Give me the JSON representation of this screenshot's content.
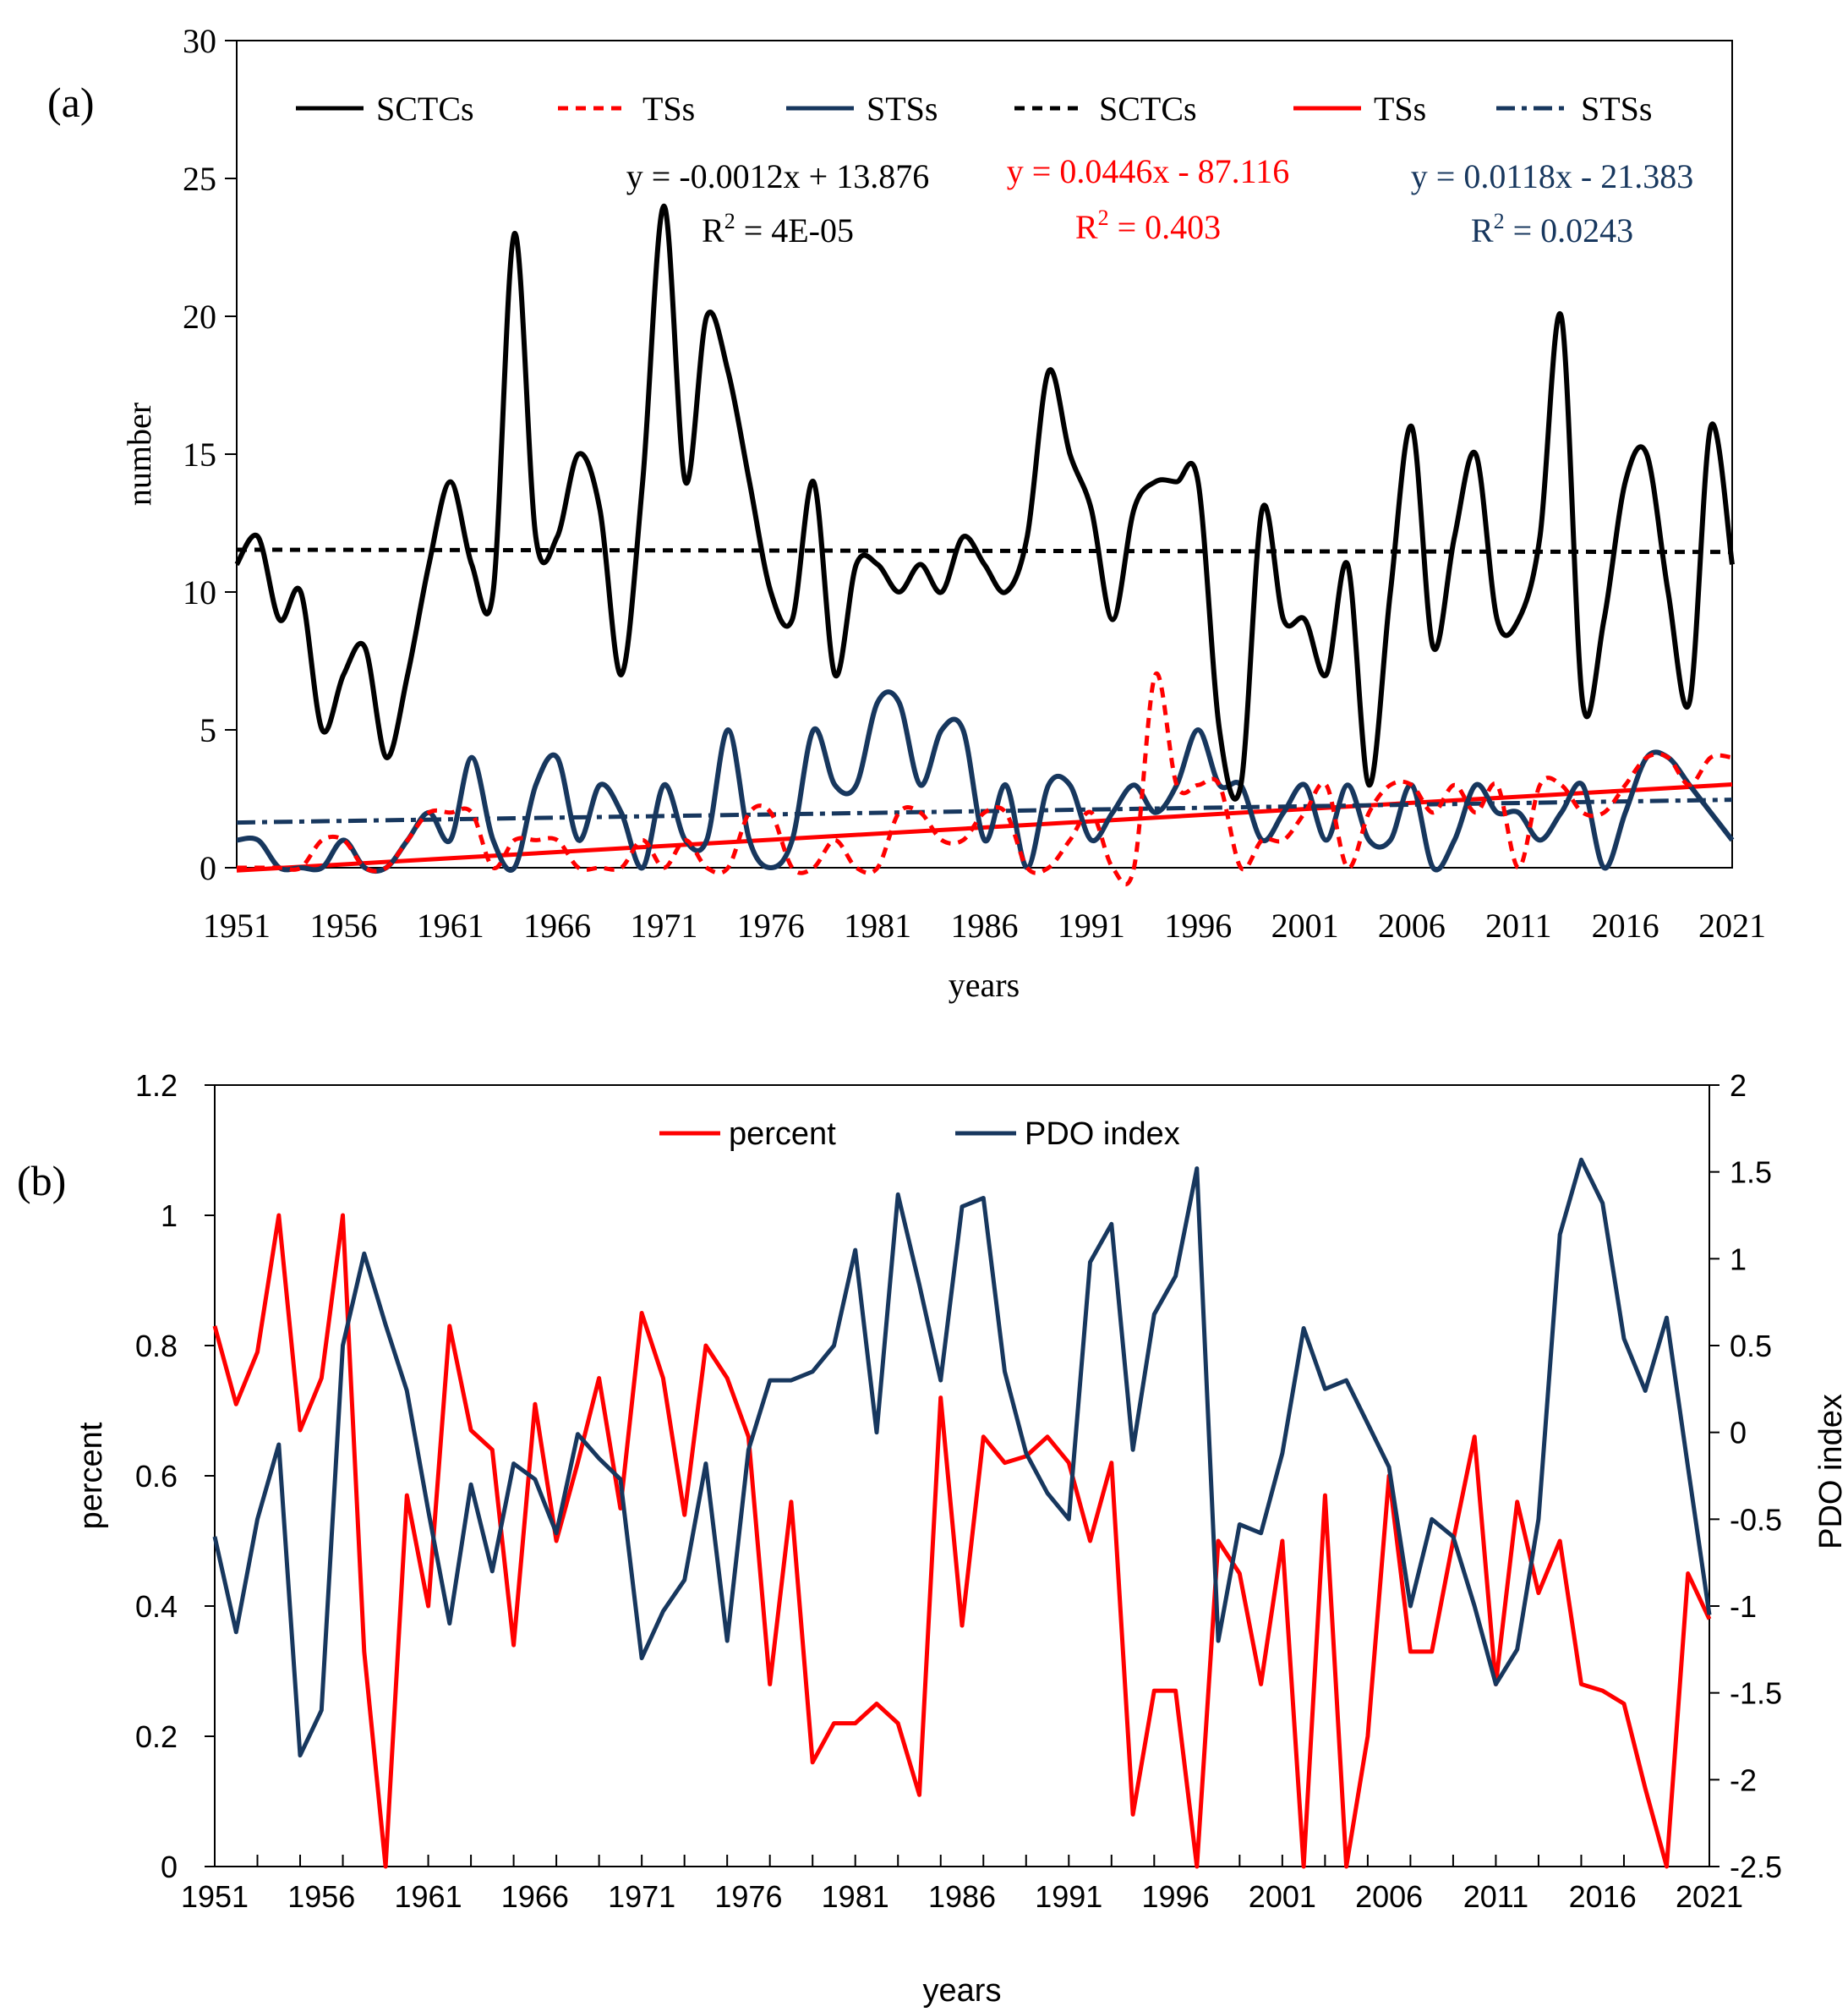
{
  "colors": {
    "black": "#000000",
    "red": "#ff0000",
    "navy": "#17375e"
  },
  "chart_data": [
    {
      "panel_label": "(a)",
      "type": "line",
      "xlabel": "years",
      "ylabel": "number",
      "xlim": [
        1951,
        2021
      ],
      "ylim": [
        0,
        30
      ],
      "yticks": [
        0,
        5,
        10,
        15,
        20,
        25,
        30
      ],
      "xticks": [
        1951,
        1956,
        1961,
        1966,
        1971,
        1976,
        1981,
        1986,
        1991,
        1996,
        2001,
        2006,
        2011,
        2016,
        2021
      ],
      "grid": false,
      "legend": [
        "SCTCs",
        "TSs",
        "STSs",
        "SCTCs",
        "TSs",
        "STSs"
      ],
      "x": [
        1951,
        1952,
        1953,
        1954,
        1955,
        1956,
        1957,
        1958,
        1959,
        1960,
        1961,
        1962,
        1963,
        1964,
        1965,
        1966,
        1967,
        1968,
        1969,
        1970,
        1971,
        1972,
        1973,
        1974,
        1975,
        1976,
        1977,
        1978,
        1979,
        1980,
        1981,
        1982,
        1983,
        1984,
        1985,
        1986,
        1987,
        1988,
        1989,
        1990,
        1991,
        1992,
        1993,
        1994,
        1995,
        1996,
        1997,
        1998,
        1999,
        2000,
        2001,
        2002,
        2003,
        2004,
        2005,
        2006,
        2007,
        2008,
        2009,
        2010,
        2011,
        2012,
        2013,
        2014,
        2015,
        2016,
        2017,
        2018,
        2019,
        2020,
        2021
      ],
      "series": [
        {
          "name": "SCTCs",
          "style": "solid",
          "color": "#000000",
          "values": [
            11,
            12,
            9,
            10,
            5,
            7,
            8,
            4,
            7,
            11,
            14,
            11,
            10,
            23,
            12,
            12,
            15,
            13,
            7,
            14,
            24,
            14,
            20,
            18,
            14,
            10,
            9,
            14,
            7,
            11,
            11,
            10,
            11,
            10,
            12,
            11,
            10,
            12,
            18,
            15,
            13,
            9,
            13,
            14,
            14,
            14,
            5,
            3,
            13,
            9,
            9,
            7,
            11,
            3,
            10,
            16,
            8,
            12,
            15,
            9,
            9,
            12,
            20,
            6,
            9,
            14,
            15,
            10,
            6,
            16,
            11
          ]
        },
        {
          "name": "TSs",
          "style": "dotted",
          "color": "#ff0000",
          "values": [
            0,
            0,
            0,
            0,
            1,
            1,
            0,
            0,
            1,
            2,
            2,
            2,
            0,
            1,
            1,
            1,
            0,
            0,
            0,
            1,
            0,
            1,
            0,
            0,
            2,
            2,
            0,
            0,
            1,
            0,
            0,
            2,
            2,
            1,
            1,
            2,
            2,
            0,
            0,
            1,
            2,
            0,
            0,
            7,
            3,
            3,
            3,
            0,
            1,
            1,
            2,
            3,
            0,
            2,
            3,
            3,
            2,
            3,
            2,
            3,
            0,
            3,
            3,
            2,
            2,
            3,
            4,
            4,
            3,
            4,
            4
          ]
        },
        {
          "name": "STSs",
          "style": "solid",
          "color": "#17375e",
          "values": [
            1,
            1,
            0,
            0,
            0,
            1,
            0,
            0,
            1,
            2,
            1,
            4,
            1,
            0,
            3,
            4,
            1,
            3,
            2,
            0,
            3,
            1,
            1,
            5,
            1,
            0,
            1,
            5,
            3,
            3,
            6,
            6,
            3,
            5,
            5,
            1,
            3,
            0,
            3,
            3,
            1,
            2,
            3,
            2,
            3,
            5,
            3,
            3,
            1,
            2,
            3,
            1,
            3,
            1,
            1,
            3,
            0,
            1,
            3,
            2,
            2,
            1,
            2,
            3,
            0,
            2,
            4,
            4,
            3,
            2,
            1
          ]
        }
      ],
      "trendlines": [
        {
          "name": "SCTCs",
          "style": "dotted",
          "color": "#000000",
          "slope": -0.0012,
          "intercept": 13.876,
          "equation": "y = -0.0012x + 13.876",
          "r2_prefix": "R",
          "r2_sup": "2",
          "r2_value": " = 4E-05"
        },
        {
          "name": "TSs",
          "style": "solid",
          "color": "#ff0000",
          "slope": 0.0446,
          "intercept": -87.116,
          "equation": "y = 0.0446x - 87.116",
          "r2_prefix": "R",
          "r2_sup": "2",
          "r2_value": " = 0.403"
        },
        {
          "name": "STSs",
          "style": "dashdot",
          "color": "#17375e",
          "slope": 0.0118,
          "intercept": -21.383,
          "equation": "y = 0.0118x - 21.383",
          "r2_prefix": "R",
          "r2_sup": "2",
          "r2_value": " = 0.0243"
        }
      ]
    },
    {
      "panel_label": "(b)",
      "type": "line",
      "xlabel": "years",
      "ylabel": "percent",
      "y2label": "PDO index",
      "xlim": [
        1951,
        2021
      ],
      "ylim": [
        0,
        1.2
      ],
      "y2lim": [
        -2.5,
        2
      ],
      "yticks": [
        0,
        0.2,
        0.4,
        0.6,
        0.8,
        1,
        1.2
      ],
      "ytick_labels": [
        "0",
        "0.2",
        "0.4",
        "0.6",
        "0.8",
        "1",
        "1.2"
      ],
      "y2ticks": [
        -2.5,
        -2,
        -1.5,
        -1,
        -0.5,
        0,
        0.5,
        1,
        1.5,
        2
      ],
      "y2tick_labels": [
        "-2.5",
        "-2",
        "-1.5",
        "-1",
        "-0.5",
        "0",
        "0.5",
        "1",
        "1.5",
        "2"
      ],
      "xticks": [
        1951,
        1956,
        1961,
        1966,
        1971,
        1976,
        1981,
        1986,
        1991,
        1996,
        2001,
        2006,
        2011,
        2016,
        2021
      ],
      "grid": false,
      "legend": [
        "percent",
        "PDO index"
      ],
      "x": [
        1951,
        1952,
        1953,
        1954,
        1955,
        1956,
        1957,
        1958,
        1959,
        1960,
        1961,
        1962,
        1963,
        1964,
        1965,
        1966,
        1967,
        1968,
        1969,
        1970,
        1971,
        1972,
        1973,
        1974,
        1975,
        1976,
        1977,
        1978,
        1979,
        1980,
        1981,
        1982,
        1983,
        1984,
        1985,
        1986,
        1987,
        1988,
        1989,
        1990,
        1991,
        1992,
        1993,
        1994,
        1995,
        1996,
        1997,
        1998,
        1999,
        2000,
        2001,
        2002,
        2003,
        2004,
        2005,
        2006,
        2007,
        2008,
        2009,
        2010,
        2011,
        2012,
        2013,
        2014,
        2015,
        2016,
        2017,
        2018,
        2019,
        2020,
        2021
      ],
      "series": [
        {
          "name": "percent",
          "axis": "left",
          "color": "#ff0000",
          "values": [
            0.83,
            0.71,
            0.79,
            1.0,
            0.67,
            0.75,
            1.0,
            0.33,
            0.0,
            0.57,
            0.4,
            0.83,
            0.67,
            0.64,
            0.34,
            0.71,
            0.5,
            0.62,
            0.75,
            0.55,
            0.85,
            0.75,
            0.54,
            0.8,
            0.75,
            0.66,
            0.28,
            0.56,
            0.16,
            0.22,
            0.22,
            0.25,
            0.22,
            0.11,
            0.72,
            0.37,
            0.66,
            0.62,
            0.63,
            0.66,
            0.62,
            0.5,
            0.62,
            0.08,
            0.27,
            0.27,
            0.0,
            0.5,
            0.45,
            0.28,
            0.5,
            0.0,
            0.57,
            0.0,
            0.2,
            0.6,
            0.33,
            0.33,
            0.5,
            0.66,
            0.28,
            0.56,
            0.42,
            0.5,
            0.28,
            0.27,
            0.25,
            0.12,
            0.0,
            0.45,
            0.38
          ]
        },
        {
          "name": "PDO index",
          "axis": "right",
          "color": "#17375e",
          "values": [
            -0.6,
            -1.15,
            -0.5,
            -0.07,
            -1.86,
            -1.6,
            0.5,
            1.03,
            0.62,
            0.24,
            -0.45,
            -1.1,
            -0.3,
            -0.8,
            -0.18,
            -0.27,
            -0.58,
            -0.01,
            -0.15,
            -0.27,
            -1.3,
            -1.03,
            -0.85,
            -0.18,
            -1.2,
            -0.1,
            0.3,
            0.3,
            0.35,
            0.5,
            1.05,
            0.0,
            1.37,
            0.85,
            0.3,
            1.3,
            1.35,
            0.35,
            -0.12,
            -0.35,
            -0.5,
            0.98,
            1.2,
            -0.1,
            0.68,
            0.9,
            1.52,
            -1.2,
            -0.53,
            -0.58,
            -0.12,
            0.6,
            0.25,
            0.3,
            0.05,
            -0.2,
            -1.0,
            -0.5,
            -0.6,
            -1.0,
            -1.45,
            -1.25,
            -0.5,
            1.14,
            1.57,
            1.32,
            0.54,
            0.24,
            0.66,
            -0.2,
            -1.05
          ]
        }
      ]
    }
  ]
}
